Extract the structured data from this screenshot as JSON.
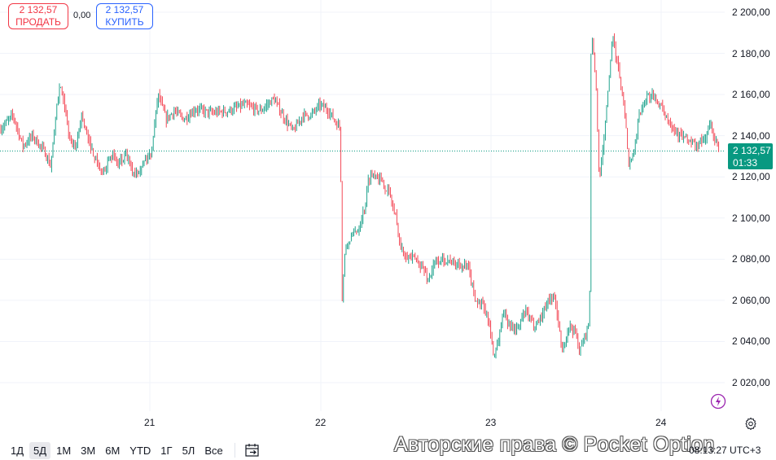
{
  "trade": {
    "sell_price": "2 132,57",
    "sell_label": "ПРОДАТЬ",
    "spread": "0,00",
    "buy_price": "2 132,57",
    "buy_label": "КУПИТЬ"
  },
  "current_price": {
    "value": "2 132,57",
    "countdown": "01:33",
    "color": "#089981"
  },
  "colors": {
    "up": "#089981",
    "down": "#f23645",
    "grid": "#f0f3fa"
  },
  "periods": [
    "1Д",
    "5Д",
    "1М",
    "3М",
    "6М",
    "YTD",
    "1Г",
    "5Л",
    "Все"
  ],
  "active_period": "5Д",
  "watermark": "Авторские права © Pocket Option",
  "clock": "08:13:27 UTC+3",
  "chart_data": {
    "type": "candlestick",
    "x_ticks": [
      "21",
      "22",
      "23",
      "24"
    ],
    "y_ticks": [
      "2 200,00",
      "2 180,00",
      "2 160,00",
      "2 140,00",
      "2 120,00",
      "2 100,00",
      "2 080,00",
      "2 060,00",
      "2 040,00",
      "2 020,00"
    ],
    "ylim": [
      2014,
      2203
    ],
    "last_price": 2132.57,
    "grid": true,
    "path": [
      [
        0,
        2143
      ],
      [
        16,
        2150
      ],
      [
        28,
        2135
      ],
      [
        40,
        2140
      ],
      [
        55,
        2132
      ],
      [
        62,
        2125
      ],
      [
        70,
        2155
      ],
      [
        74,
        2165
      ],
      [
        85,
        2140
      ],
      [
        92,
        2132
      ],
      [
        100,
        2150
      ],
      [
        108,
        2138
      ],
      [
        118,
        2128
      ],
      [
        126,
        2120
      ],
      [
        135,
        2132
      ],
      [
        145,
        2126
      ],
      [
        155,
        2130
      ],
      [
        163,
        2122
      ],
      [
        170,
        2124
      ],
      [
        178,
        2128
      ],
      [
        186,
        2132
      ],
      [
        194,
        2160
      ],
      [
        204,
        2148
      ],
      [
        214,
        2152
      ],
      [
        226,
        2148
      ],
      [
        240,
        2153
      ],
      [
        260,
        2151
      ],
      [
        280,
        2152
      ],
      [
        300,
        2155
      ],
      [
        320,
        2152
      ],
      [
        336,
        2158
      ],
      [
        350,
        2148
      ],
      [
        360,
        2142
      ],
      [
        372,
        2150
      ],
      [
        382,
        2150
      ],
      [
        393,
        2155
      ],
      [
        404,
        2152
      ],
      [
        413,
        2146
      ],
      [
        418,
        2144
      ],
      [
        419,
        2100
      ],
      [
        420,
        2058
      ],
      [
        423,
        2082
      ],
      [
        430,
        2090
      ],
      [
        440,
        2095
      ],
      [
        448,
        2105
      ],
      [
        453,
        2120
      ],
      [
        460,
        2122
      ],
      [
        468,
        2118
      ],
      [
        478,
        2112
      ],
      [
        486,
        2100
      ],
      [
        492,
        2085
      ],
      [
        500,
        2082
      ],
      [
        510,
        2080
      ],
      [
        520,
        2075
      ],
      [
        526,
        2070
      ],
      [
        534,
        2078
      ],
      [
        545,
        2080
      ],
      [
        560,
        2078
      ],
      [
        575,
        2076
      ],
      [
        584,
        2060
      ],
      [
        592,
        2058
      ],
      [
        600,
        2050
      ],
      [
        606,
        2033
      ],
      [
        612,
        2040
      ],
      [
        618,
        2055
      ],
      [
        626,
        2048
      ],
      [
        636,
        2046
      ],
      [
        645,
        2055
      ],
      [
        655,
        2048
      ],
      [
        665,
        2052
      ],
      [
        672,
        2060
      ],
      [
        680,
        2062
      ],
      [
        686,
        2050
      ],
      [
        690,
        2033
      ],
      [
        698,
        2048
      ],
      [
        706,
        2045
      ],
      [
        712,
        2035
      ],
      [
        720,
        2045
      ],
      [
        724,
        2050
      ],
      [
        726,
        2194
      ],
      [
        732,
        2165
      ],
      [
        736,
        2115
      ],
      [
        742,
        2140
      ],
      [
        748,
        2168
      ],
      [
        752,
        2188
      ],
      [
        760,
        2172
      ],
      [
        768,
        2150
      ],
      [
        772,
        2125
      ],
      [
        778,
        2132
      ],
      [
        785,
        2150
      ],
      [
        795,
        2160
      ],
      [
        805,
        2158
      ],
      [
        815,
        2152
      ],
      [
        825,
        2145
      ],
      [
        835,
        2140
      ],
      [
        845,
        2138
      ],
      [
        855,
        2135
      ],
      [
        865,
        2138
      ],
      [
        872,
        2146
      ],
      [
        878,
        2138
      ],
      [
        884,
        2132
      ]
    ]
  }
}
